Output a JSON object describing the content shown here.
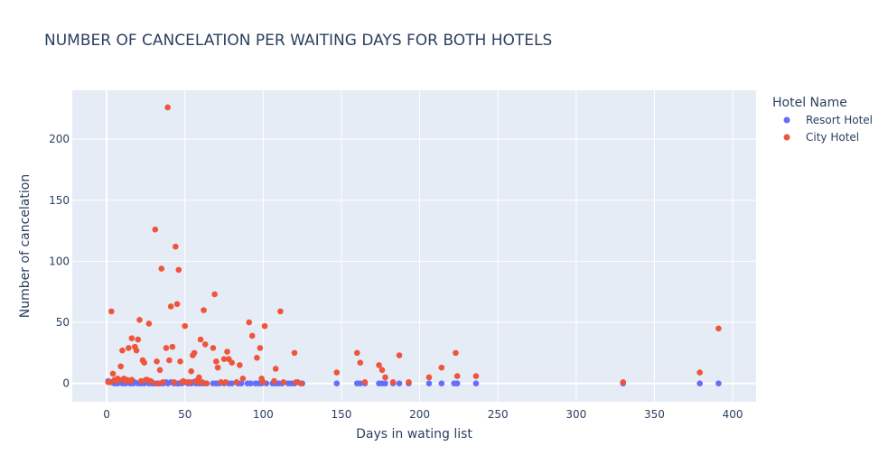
{
  "chart_data": {
    "type": "scatter",
    "title": "NUMBER OF CANCELATION PER WAITING DAYS FOR BOTH HOTELS",
    "xlabel": "Days in wating list",
    "ylabel": "Number of cancelation",
    "xlim": [
      -22,
      415
    ],
    "ylim": [
      -15,
      240
    ],
    "xticks": [
      0,
      50,
      100,
      150,
      200,
      250,
      300,
      350,
      400
    ],
    "yticks": [
      0,
      50,
      100,
      150,
      200
    ],
    "grid": true,
    "legend_title": "Hotel Name",
    "legend_position": "top-right",
    "colors": {
      "plot_bg": "#e5ecf6",
      "grid": "#ffffff",
      "text": "#2a3f5f"
    },
    "series": [
      {
        "name": "Resort Hotel",
        "color": "#636efa",
        "points": [
          [
            1,
            2
          ],
          [
            3,
            1
          ],
          [
            5,
            0
          ],
          [
            7,
            0
          ],
          [
            8,
            1
          ],
          [
            10,
            0
          ],
          [
            12,
            0
          ],
          [
            13,
            1
          ],
          [
            15,
            0
          ],
          [
            17,
            0
          ],
          [
            18,
            1
          ],
          [
            20,
            0
          ],
          [
            22,
            0
          ],
          [
            24,
            0
          ],
          [
            25,
            1
          ],
          [
            27,
            0
          ],
          [
            29,
            0
          ],
          [
            30,
            0
          ],
          [
            32,
            0
          ],
          [
            34,
            0
          ],
          [
            36,
            0
          ],
          [
            38,
            1
          ],
          [
            39,
            0
          ],
          [
            41,
            1
          ],
          [
            43,
            0
          ],
          [
            45,
            0
          ],
          [
            46,
            0
          ],
          [
            48,
            0
          ],
          [
            50,
            1
          ],
          [
            52,
            0
          ],
          [
            54,
            0
          ],
          [
            55,
            1
          ],
          [
            57,
            0
          ],
          [
            59,
            0
          ],
          [
            61,
            0
          ],
          [
            63,
            0
          ],
          [
            68,
            0
          ],
          [
            70,
            0
          ],
          [
            72,
            0
          ],
          [
            75,
            0
          ],
          [
            78,
            0
          ],
          [
            80,
            0
          ],
          [
            84,
            0
          ],
          [
            86,
            0
          ],
          [
            90,
            0
          ],
          [
            92,
            0
          ],
          [
            95,
            0
          ],
          [
            97,
            0
          ],
          [
            99,
            0
          ],
          [
            102,
            0
          ],
          [
            106,
            0
          ],
          [
            108,
            0
          ],
          [
            110,
            0
          ],
          [
            112,
            0
          ],
          [
            116,
            0
          ],
          [
            118,
            0
          ],
          [
            120,
            0
          ],
          [
            122,
            1
          ],
          [
            125,
            0
          ],
          [
            147,
            0
          ],
          [
            160,
            0
          ],
          [
            162,
            0
          ],
          [
            165,
            0
          ],
          [
            174,
            0
          ],
          [
            176,
            0
          ],
          [
            178,
            0
          ],
          [
            183,
            0
          ],
          [
            187,
            0
          ],
          [
            193,
            0
          ],
          [
            206,
            0
          ],
          [
            214,
            0
          ],
          [
            222,
            0
          ],
          [
            224,
            0
          ],
          [
            236,
            0
          ],
          [
            330,
            0
          ],
          [
            379,
            0
          ],
          [
            391,
            0
          ]
        ]
      },
      {
        "name": "City Hotel",
        "color": "#ef553b",
        "points": [
          [
            1,
            1
          ],
          [
            2,
            1
          ],
          [
            3,
            59
          ],
          [
            4,
            8
          ],
          [
            5,
            3
          ],
          [
            6,
            2
          ],
          [
            7,
            4
          ],
          [
            8,
            3
          ],
          [
            9,
            14
          ],
          [
            10,
            27
          ],
          [
            11,
            4
          ],
          [
            12,
            2
          ],
          [
            13,
            3
          ],
          [
            14,
            29
          ],
          [
            15,
            2
          ],
          [
            16,
            3
          ],
          [
            16,
            37
          ],
          [
            18,
            30
          ],
          [
            19,
            27
          ],
          [
            20,
            36
          ],
          [
            21,
            52
          ],
          [
            22,
            2
          ],
          [
            23,
            19
          ],
          [
            24,
            17
          ],
          [
            25,
            3
          ],
          [
            26,
            3
          ],
          [
            27,
            49
          ],
          [
            28,
            2
          ],
          [
            29,
            1
          ],
          [
            31,
            126
          ],
          [
            32,
            18
          ],
          [
            33,
            0
          ],
          [
            34,
            11
          ],
          [
            35,
            94
          ],
          [
            36,
            1
          ],
          [
            38,
            29
          ],
          [
            39,
            226
          ],
          [
            40,
            19
          ],
          [
            41,
            63
          ],
          [
            42,
            30
          ],
          [
            43,
            1
          ],
          [
            44,
            112
          ],
          [
            45,
            65
          ],
          [
            46,
            93
          ],
          [
            47,
            18
          ],
          [
            48,
            1
          ],
          [
            49,
            2
          ],
          [
            50,
            47
          ],
          [
            52,
            1
          ],
          [
            53,
            1
          ],
          [
            54,
            10
          ],
          [
            55,
            23
          ],
          [
            56,
            25
          ],
          [
            57,
            2
          ],
          [
            58,
            1
          ],
          [
            59,
            5
          ],
          [
            60,
            36
          ],
          [
            61,
            1
          ],
          [
            62,
            60
          ],
          [
            63,
            32
          ],
          [
            64,
            0
          ],
          [
            68,
            29
          ],
          [
            69,
            73
          ],
          [
            70,
            18
          ],
          [
            71,
            13
          ],
          [
            73,
            1
          ],
          [
            75,
            20
          ],
          [
            76,
            1
          ],
          [
            77,
            26
          ],
          [
            78,
            20
          ],
          [
            80,
            17
          ],
          [
            83,
            1
          ],
          [
            85,
            15
          ],
          [
            87,
            4
          ],
          [
            91,
            50
          ],
          [
            93,
            39
          ],
          [
            96,
            21
          ],
          [
            98,
            29
          ],
          [
            99,
            4
          ],
          [
            100,
            1
          ],
          [
            101,
            47
          ],
          [
            107,
            2
          ],
          [
            108,
            12
          ],
          [
            111,
            59
          ],
          [
            113,
            1
          ],
          [
            120,
            25
          ],
          [
            121,
            1
          ],
          [
            124,
            0
          ],
          [
            147,
            9
          ],
          [
            160,
            25
          ],
          [
            162,
            17
          ],
          [
            165,
            1
          ],
          [
            174,
            15
          ],
          [
            176,
            11
          ],
          [
            178,
            5
          ],
          [
            183,
            1
          ],
          [
            187,
            23
          ],
          [
            193,
            1
          ],
          [
            206,
            5
          ],
          [
            214,
            13
          ],
          [
            223,
            25
          ],
          [
            224,
            6
          ],
          [
            236,
            6
          ],
          [
            330,
            1
          ],
          [
            379,
            9
          ],
          [
            391,
            45
          ]
        ]
      }
    ]
  }
}
